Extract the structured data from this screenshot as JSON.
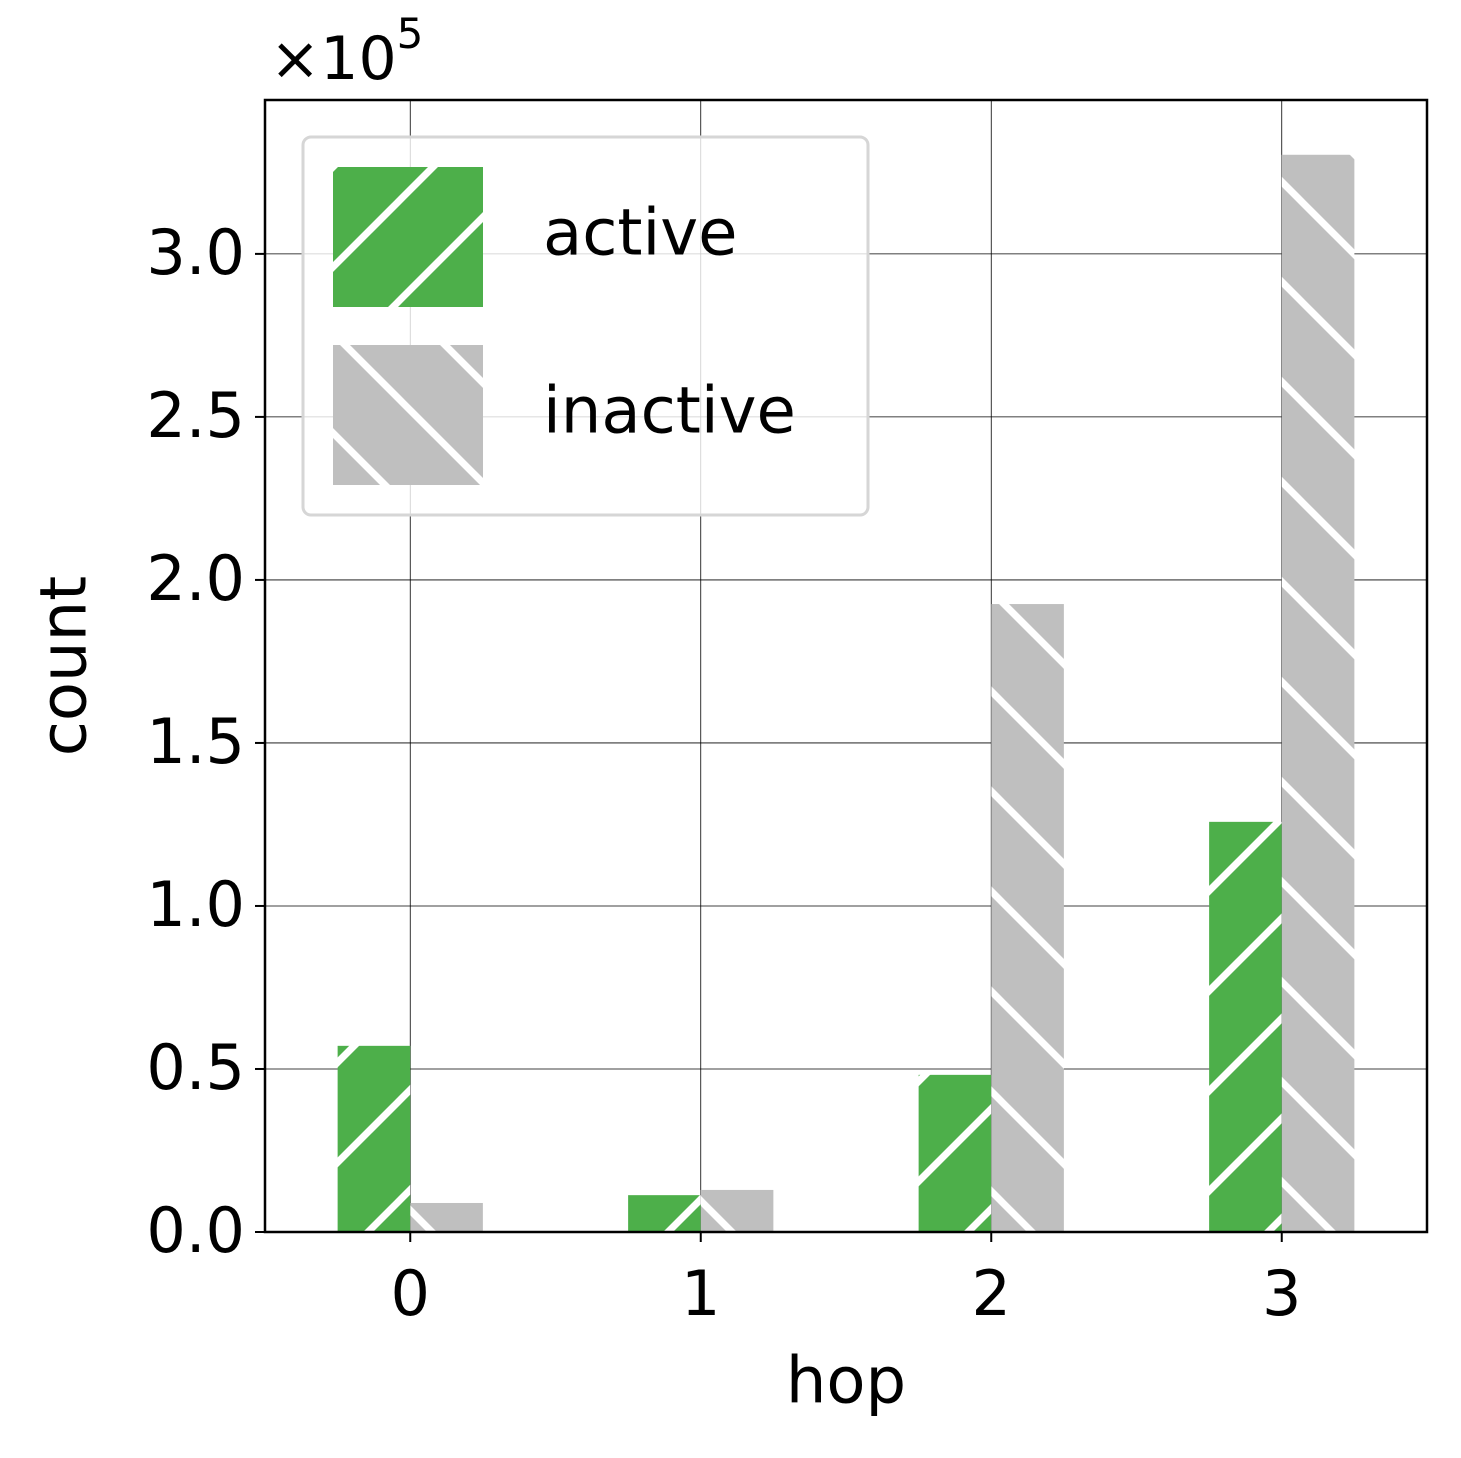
{
  "chart_data": {
    "type": "bar",
    "x_label": "hop",
    "y_label": "count",
    "y_offset_label": "×10",
    "y_offset_exponent": "5",
    "x": [
      0,
      1,
      2,
      3
    ],
    "xlim": [
      -0.5,
      3.5
    ],
    "xticks": [
      0,
      1,
      2,
      3
    ],
    "ylim": [
      0,
      3.472
    ],
    "yticks": [
      {
        "value": 0,
        "label": "0.0"
      },
      0.5,
      {
        "value": 1,
        "label": "1.0"
      },
      1.5,
      {
        "value": 2,
        "label": "2.0"
      },
      2.5,
      {
        "value": 3,
        "label": "3.0"
      }
    ],
    "grid": true,
    "legend": "upper left",
    "series": [
      {
        "name": "active",
        "color": "#4daf4a",
        "hatch": "/",
        "values": [
          0.571,
          0.113,
          0.482,
          1.258
        ]
      },
      {
        "name": "inactive",
        "color": "#bfbfbf",
        "hatch": "\\",
        "values": [
          0.089,
          0.129,
          1.926,
          3.304
        ]
      }
    ]
  }
}
